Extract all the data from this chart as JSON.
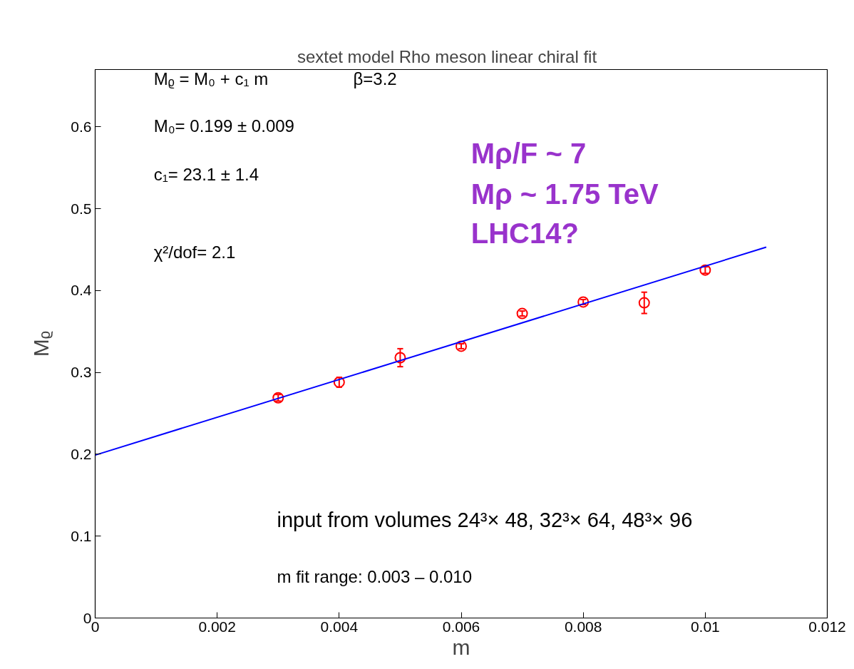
{
  "chart_data": {
    "type": "scatter",
    "title": "sextet model   Rho meson     linear chiral fit",
    "xlabel": "m",
    "ylabel": "Mᵨ",
    "x": [
      0.003,
      0.004,
      0.005,
      0.006,
      0.007,
      0.008,
      0.009,
      0.01
    ],
    "series": [
      {
        "color": "#ff0000",
        "marker": "circle",
        "values": [
          0.269,
          0.288,
          0.318,
          0.332,
          0.372,
          0.386,
          0.385,
          0.425
        ],
        "errors": [
          0.004,
          0.006,
          0.011,
          0.003,
          0.003,
          0.003,
          0.013,
          0.004
        ]
      },
      {
        "type": "line",
        "color": "#0000ff",
        "x": [
          0,
          0.011
        ],
        "values": [
          0.199,
          0.453
        ],
        "line_style": "solid"
      }
    ],
    "xlim": [
      0,
      0.012
    ],
    "ylim": [
      0,
      0.67
    ],
    "xticks": [
      0,
      0.002,
      0.004,
      0.006,
      0.008,
      {
        "value": 0.01,
        "label": "0.01"
      },
      0.012
    ],
    "yticks": [
      0,
      0.1,
      0.2,
      0.3,
      0.4,
      0.5,
      0.6
    ],
    "grid": false,
    "annotations": [
      "Mᵨ = M₀ + c₁ m",
      "β=3.2",
      "M₀=  0.199 ± 0.009",
      "c₁=  23.1 ± 1.4",
      "χ²/dof= 2.1",
      "Mρ/F ~ 7",
      "Mρ ~ 1.75 TeV",
      "LHC14?",
      "input from volumes  24³× 48, 32³× 64, 48³× 96",
      "m fit range:  0.003 – 0.010"
    ]
  }
}
